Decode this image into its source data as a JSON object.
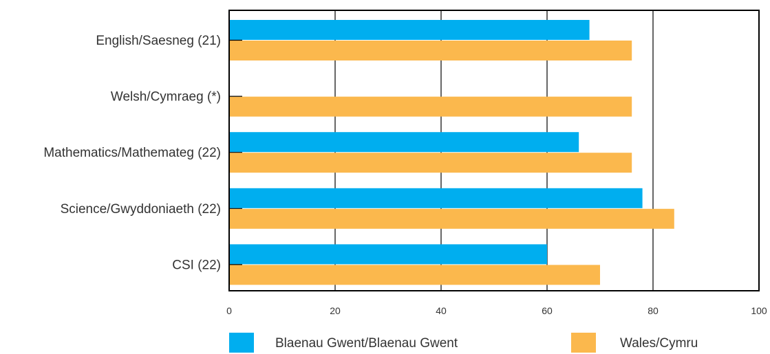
{
  "chart_data": {
    "type": "bar",
    "orientation": "horizontal",
    "categories": [
      "English/Saesneg (21)",
      "Welsh/Cymraeg (*)",
      "Mathematics/Mathemateg (22)",
      "Science/Gwyddoniaeth (22)",
      "CSI (22)"
    ],
    "series": [
      {
        "name": "Blaenau Gwent/Blaenau Gwent",
        "color": "#00aeef",
        "values": [
          68,
          null,
          66,
          78,
          60
        ]
      },
      {
        "name": "Wales/Cymru",
        "color": "#fbb84d",
        "values": [
          76,
          76,
          76,
          84,
          70
        ]
      }
    ],
    "xlim": [
      0,
      100
    ],
    "xticks": [
      0,
      20,
      40,
      60,
      80,
      100
    ],
    "xtick_labels": [
      "0",
      "20",
      "40",
      "60",
      "80",
      "100"
    ],
    "grid": "vertical",
    "legend_position": "bottom",
    "title": "",
    "xlabel": "",
    "ylabel": ""
  }
}
